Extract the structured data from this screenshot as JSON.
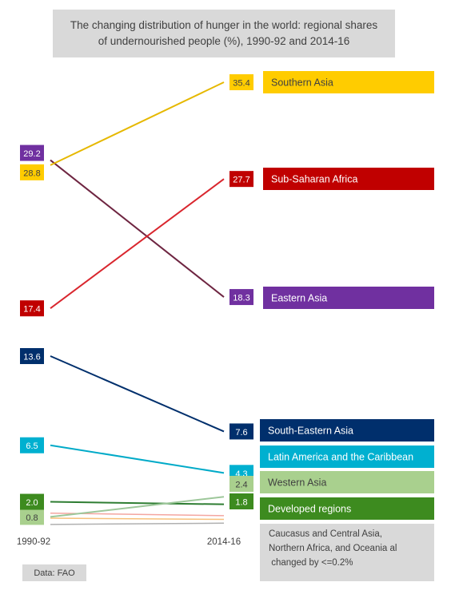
{
  "chart_data": {
    "type": "line",
    "title": "The changing distribution of hunger in the world: regional shares of undernourished people (%), 1990-92 and 2014-16",
    "x": [
      "1990-92",
      "2014-16"
    ],
    "ylim": [
      0,
      36
    ],
    "grid": false,
    "series": [
      {
        "name": "Southern Asia",
        "values": [
          28.8,
          35.4
        ],
        "color": "#e6b800",
        "label_bg": "#ffcc00",
        "label_text": "#404040",
        "value_labels": [
          "28.8",
          "35.4"
        ]
      },
      {
        "name": "Sub-Saharan Africa",
        "values": [
          17.4,
          27.7
        ],
        "color": "#d9262e",
        "label_bg": "#c00000",
        "label_text": "#ffffff",
        "value_labels": [
          "17.4",
          "27.7"
        ]
      },
      {
        "name": "Eastern Asia",
        "values": [
          29.2,
          18.3
        ],
        "color": "#6e2541",
        "label_bg": "#7030a0",
        "label_text": "#ffffff",
        "value_labels": [
          "29.2",
          "18.3"
        ]
      },
      {
        "name": "South-Eastern Asia",
        "values": [
          13.6,
          7.6
        ],
        "color": "#002f6c",
        "label_bg": "#002f6c",
        "label_text": "#ffffff",
        "value_labels": [
          "13.6",
          "7.6"
        ]
      },
      {
        "name": "Latin America and the Caribbean",
        "values": [
          6.5,
          4.3
        ],
        "color": "#00aac8",
        "label_bg": "#00b0d0",
        "label_text": "#ffffff",
        "value_labels": [
          "6.5",
          "4.3"
        ]
      },
      {
        "name": "Western Asia",
        "values": [
          0.8,
          2.4
        ],
        "color": "#9dc79a",
        "label_bg": "#a9d08e",
        "label_text": "#404040",
        "value_labels": [
          "0.8",
          "2.4"
        ]
      },
      {
        "name": "Developed regions",
        "values": [
          2.0,
          1.8
        ],
        "color": "#2e7d32",
        "label_bg": "#3d8b1f",
        "label_text": "#ffffff",
        "value_labels": [
          "2.0",
          "1.8"
        ]
      },
      {
        "name": "",
        "values": [
          1.1,
          0.9
        ],
        "color": "#f4a6a0"
      },
      {
        "name": "",
        "values": [
          0.7,
          0.6
        ],
        "color": "#f7c07a"
      },
      {
        "name": "",
        "values": [
          0.2,
          0.3
        ],
        "color": "#b0b0b0"
      }
    ],
    "note": "Caucasus and Central Asia, Northern Africa, and Oceania all changed by <=0.2%",
    "source": "Data:  FAO"
  }
}
